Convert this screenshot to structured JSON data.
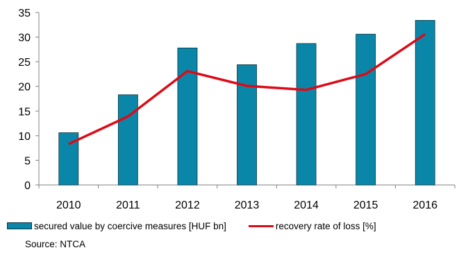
{
  "chart_data": {
    "type": "bar",
    "categories": [
      "2010",
      "2011",
      "2012",
      "2013",
      "2014",
      "2015",
      "2016"
    ],
    "series": [
      {
        "name": "secured value by coercive measures [HUF bn]",
        "type": "bar",
        "values": [
          10.6,
          18.3,
          27.8,
          24.4,
          28.7,
          30.6,
          33.4
        ]
      },
      {
        "name": "recovery rate of loss [%]",
        "type": "line",
        "values": [
          8.3,
          13.9,
          23.1,
          20.1,
          19.3,
          22.5,
          30.6
        ]
      }
    ],
    "ylim": [
      0,
      35
    ],
    "yticks": [
      "0",
      "5",
      "10",
      "15",
      "20",
      "25",
      "30",
      "35"
    ],
    "grid": false,
    "legend": "bottom",
    "title": "",
    "xlabel": "",
    "ylabel": ""
  },
  "colors": {
    "bar": "#0A87A8",
    "bar_edge": "#0b3140",
    "line": "#DD0A17",
    "axis": "#808080"
  },
  "source_label": "Source: NTCA"
}
